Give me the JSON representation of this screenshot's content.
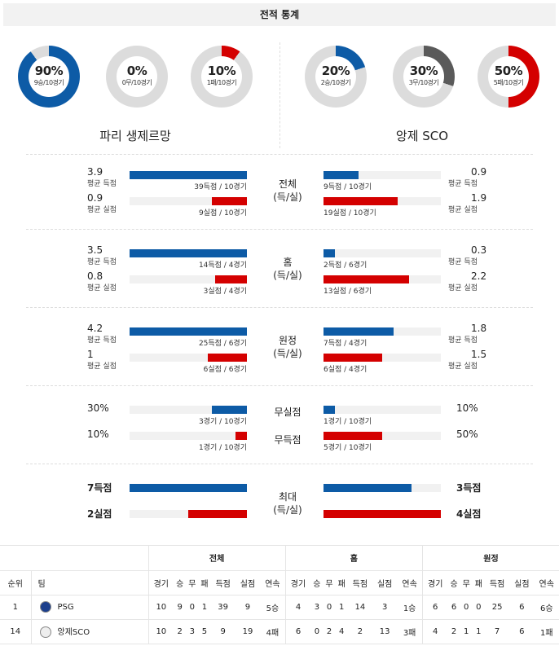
{
  "title": "전적 통계",
  "home_team": {
    "name": "파리 생제르망",
    "donuts": [
      {
        "pct": "90%",
        "sub": "9승/10경기",
        "value": 90,
        "color": "#0d5ba6"
      },
      {
        "pct": "0%",
        "sub": "0무/10경기",
        "value": 0,
        "color": "#5a5a5a"
      },
      {
        "pct": "10%",
        "sub": "1패/10경기",
        "value": 10,
        "color": "#d40000"
      }
    ]
  },
  "away_team": {
    "name": "앙제 SCO",
    "donuts": [
      {
        "pct": "20%",
        "sub": "2승/10경기",
        "value": 20,
        "color": "#0d5ba6"
      },
      {
        "pct": "30%",
        "sub": "3무/10경기",
        "value": 30,
        "color": "#5a5a5a"
      },
      {
        "pct": "50%",
        "sub": "5패/10경기",
        "value": 50,
        "color": "#d40000"
      }
    ]
  },
  "sections": [
    {
      "cat1": "전체",
      "cat2": "(득/실)",
      "rows": [
        {
          "lval": "3.9",
          "lcap": "평균 득점",
          "lbar": "39득점 / 10경기",
          "lfill": 1.0,
          "rval": "0.9",
          "rcap": "평균 득점",
          "rbar": "9득점 / 10경기",
          "rfill": 0.3
        },
        {
          "lval": "0.9",
          "lcap": "평균 실점",
          "lbar": "9실점 / 10경기",
          "lfill": 0.3,
          "rval": "1.9",
          "rcap": "평균 실점",
          "rbar": "19실점 / 10경기",
          "rfill": 0.63
        }
      ]
    },
    {
      "cat1": "홈",
      "cat2": "(득/실)",
      "rows": [
        {
          "lval": "3.5",
          "lcap": "평균 득점",
          "lbar": "14득점 / 4경기",
          "lfill": 1.0,
          "rval": "0.3",
          "rcap": "평균 득점",
          "rbar": "2득점 / 6경기",
          "rfill": 0.1
        },
        {
          "lval": "0.8",
          "lcap": "평균 실점",
          "lbar": "3실점 / 4경기",
          "lfill": 0.27,
          "rval": "2.2",
          "rcap": "평균 실점",
          "rbar": "13실점 / 6경기",
          "rfill": 0.73
        }
      ]
    },
    {
      "cat1": "원정",
      "cat2": "(득/실)",
      "rows": [
        {
          "lval": "4.2",
          "lcap": "평균 득점",
          "lbar": "25득점 / 6경기",
          "lfill": 1.0,
          "rval": "1.8",
          "rcap": "평균 득점",
          "rbar": "7득점 / 4경기",
          "rfill": 0.6
        },
        {
          "lval": "1",
          "lcap": "평균 실점",
          "lbar": "6실점 / 6경기",
          "lfill": 0.33,
          "rval": "1.5",
          "rcap": "평균 실점",
          "rbar": "6실점 / 4경기",
          "rfill": 0.5
        }
      ]
    },
    {
      "cat1": "무실점",
      "cat2": "",
      "rows": [
        {
          "lval": "30%",
          "lcap": "",
          "lbar": "3경기 / 10경기",
          "lfill": 0.3,
          "rval": "10%",
          "rcap": "",
          "rbar": "1경기 / 10경기",
          "rfill": 0.1
        },
        {
          "lval": "10%",
          "lcap": "",
          "lbar": "1경기 / 10경기",
          "lfill": 0.1,
          "rval": "50%",
          "rcap": "",
          "rbar": "5경기 / 10경기",
          "rfill": 0.5
        }
      ],
      "cat_second": "무득점"
    },
    {
      "cat1": "최대",
      "cat2": "(득/실)",
      "rows": [
        {
          "lval": "7득점",
          "lcap": "",
          "lbar": "",
          "lfill": 1.0,
          "rval": "3득점",
          "rcap": "",
          "rbar": "",
          "rfill": 0.75
        },
        {
          "lval": "2실점",
          "lcap": "",
          "lbar": "",
          "lfill": 0.5,
          "rval": "4실점",
          "rcap": "",
          "rbar": "",
          "rfill": 1.0
        }
      ]
    }
  ],
  "standings": {
    "group_headers": {
      "total": "전체",
      "home": "홈",
      "away": "원정"
    },
    "rank_label": "순위",
    "team_label": "팀",
    "col_headers": [
      "경기",
      "승",
      "무",
      "패",
      "득점",
      "실점",
      "연속"
    ],
    "rows": [
      {
        "rank": "1",
        "team": "PSG",
        "total": [
          "10",
          "9",
          "0",
          "1",
          "39",
          "9",
          "5승"
        ],
        "home": [
          "4",
          "3",
          "0",
          "1",
          "14",
          "3",
          "1승"
        ],
        "away": [
          "6",
          "6",
          "0",
          "0",
          "25",
          "6",
          "6승"
        ]
      },
      {
        "rank": "14",
        "team": "앙제SCO",
        "total": [
          "10",
          "2",
          "3",
          "5",
          "9",
          "19",
          "4패"
        ],
        "home": [
          "6",
          "0",
          "2",
          "4",
          "2",
          "13",
          "3패"
        ],
        "away": [
          "4",
          "2",
          "1",
          "1",
          "7",
          "6",
          "1패"
        ]
      }
    ]
  }
}
